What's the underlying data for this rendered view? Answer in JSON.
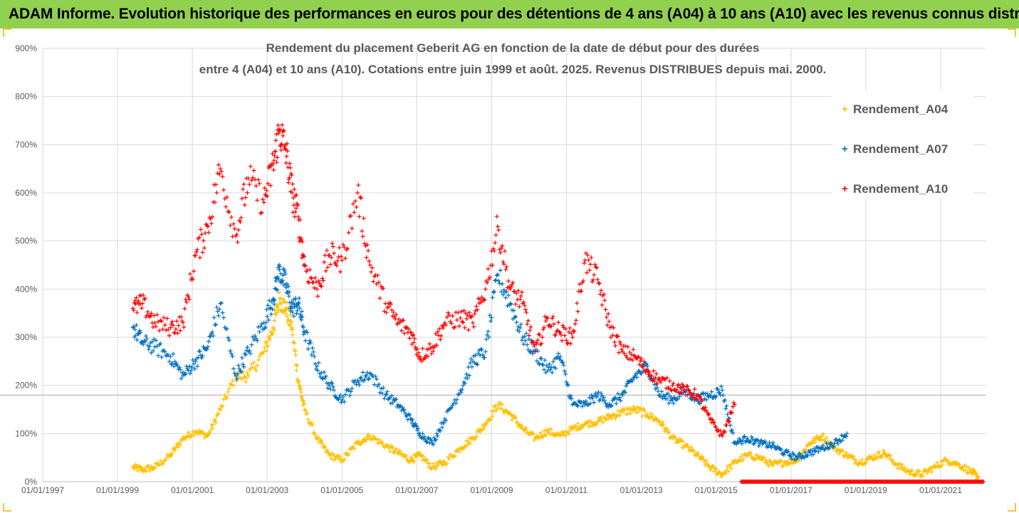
{
  "banner": {
    "text": "ADAM Informe. Evolution historique des performances en euros pour des détentions de 4 ans (A04) à 10 ans (A10) avec les revenus connus distribués"
  },
  "colors": {
    "banner_bg": "#92d050",
    "A04": "#ffc000",
    "A07": "#0070c0",
    "A10": "#ff0000",
    "grid": "#d9d9d9",
    "text": "#595959"
  },
  "chart_data": {
    "type": "scatter",
    "title": "Rendement du placement Geberit AG en fonction de la date de début pour des durées",
    "subtitle": "entre 4 (A04) et 10 ans (A10). Cotations entre juin 1999 et août. 2025. Revenus DISTRIBUES depuis mai. 2000.",
    "xlabel": "",
    "ylabel": "",
    "ylim": [
      0,
      9
    ],
    "x_range": [
      "1997-01-01",
      "2022-03-15"
    ],
    "yticks": [
      "0%",
      "100%",
      "200%",
      "300%",
      "400%",
      "500%",
      "600%",
      "700%",
      "800%",
      "900%"
    ],
    "xticks": [
      "01/01/1997",
      "01/01/1999",
      "01/01/2001",
      "01/01/2003",
      "01/01/2005",
      "01/01/2007",
      "01/01/2009",
      "01/01/2011",
      "01/01/2013",
      "01/01/2015",
      "01/01/2017",
      "01/01/2019",
      "01/01/2021"
    ],
    "grid": "horizontal and vertical",
    "legend_position": "right",
    "reference_line_y": 1.8,
    "marker": "+",
    "series": [
      {
        "name": "Rendement_A04",
        "color": "#ffc000",
        "x": [
          "1999-06",
          "1999-09",
          "2000-01",
          "2000-06",
          "2000-10",
          "2001-02",
          "2001-06",
          "2001-10",
          "2002-03",
          "2002-07",
          "2002-12",
          "2003-03",
          "2003-05",
          "2003-07",
          "2003-09",
          "2003-11",
          "2004-01",
          "2004-05",
          "2004-09",
          "2005-01",
          "2005-06",
          "2005-10",
          "2006-03",
          "2006-07",
          "2006-11",
          "2007-02",
          "2007-06",
          "2007-10",
          "2008-03",
          "2008-07",
          "2008-11",
          "2009-03",
          "2009-07",
          "2009-11",
          "2010-03",
          "2010-07",
          "2010-11",
          "2011-03",
          "2011-07",
          "2011-11",
          "2012-03",
          "2012-07",
          "2012-11",
          "2013-03",
          "2013-07",
          "2013-11",
          "2014-03",
          "2014-07",
          "2014-11",
          "2015-03",
          "2015-07",
          "2015-11",
          "2016-03",
          "2016-07",
          "2016-11",
          "2017-03",
          "2017-07",
          "2017-11",
          "2018-03",
          "2018-07",
          "2018-11",
          "2019-03",
          "2019-07",
          "2019-11",
          "2020-03",
          "2020-07",
          "2020-11",
          "2021-03",
          "2021-07",
          "2021-11",
          "2022-01"
        ],
        "y": [
          0.3,
          0.25,
          0.3,
          0.55,
          0.9,
          1.05,
          0.95,
          1.5,
          2.2,
          2.2,
          2.7,
          3.2,
          3.8,
          3.6,
          3.2,
          2.1,
          1.5,
          0.9,
          0.55,
          0.45,
          0.8,
          0.95,
          0.75,
          0.6,
          0.45,
          0.55,
          0.3,
          0.4,
          0.7,
          0.9,
          1.2,
          1.6,
          1.4,
          1.1,
          0.9,
          1.05,
          0.95,
          1.1,
          1.2,
          1.25,
          1.35,
          1.45,
          1.5,
          1.4,
          1.25,
          0.9,
          0.75,
          0.55,
          0.3,
          0.15,
          0.4,
          0.55,
          0.5,
          0.35,
          0.4,
          0.45,
          0.8,
          0.95,
          0.7,
          0.55,
          0.4,
          0.5,
          0.6,
          0.35,
          0.2,
          0.15,
          0.3,
          0.45,
          0.35,
          0.2,
          0.1
        ]
      },
      {
        "name": "Rendement_A07",
        "color": "#0070c0",
        "x": [
          "1999-06",
          "1999-09",
          "2000-01",
          "2000-06",
          "2000-10",
          "2001-02",
          "2001-06",
          "2001-10",
          "2002-03",
          "2002-07",
          "2002-12",
          "2003-03",
          "2003-05",
          "2003-07",
          "2003-09",
          "2003-11",
          "2004-01",
          "2004-05",
          "2004-09",
          "2005-01",
          "2005-06",
          "2005-10",
          "2006-03",
          "2006-07",
          "2006-11",
          "2007-02",
          "2007-06",
          "2007-10",
          "2008-03",
          "2008-07",
          "2008-11",
          "2009-03",
          "2009-07",
          "2009-11",
          "2010-03",
          "2010-07",
          "2010-11",
          "2011-03",
          "2011-07",
          "2011-11",
          "2012-03",
          "2012-07",
          "2012-11",
          "2013-03",
          "2013-07",
          "2013-11",
          "2014-03",
          "2014-07",
          "2014-11",
          "2015-03",
          "2015-07",
          "2015-11",
          "2016-03",
          "2016-07",
          "2016-11",
          "2017-03",
          "2017-07",
          "2017-11",
          "2018-03",
          "2018-07"
        ],
        "y": [
          3.2,
          2.9,
          2.8,
          2.6,
          2.2,
          2.5,
          2.8,
          3.7,
          2.2,
          2.7,
          3.3,
          3.8,
          4.4,
          4.1,
          3.6,
          3.7,
          3.1,
          2.4,
          2.0,
          1.7,
          2.1,
          2.25,
          1.8,
          1.6,
          1.3,
          1.0,
          0.8,
          1.3,
          1.9,
          2.5,
          2.7,
          4.3,
          3.7,
          3.0,
          2.7,
          2.3,
          2.6,
          1.6,
          1.6,
          1.8,
          1.6,
          1.8,
          2.2,
          2.4,
          1.8,
          1.7,
          1.9,
          1.7,
          1.8,
          1.9,
          0.8,
          0.9,
          0.8,
          0.75,
          0.6,
          0.5,
          0.6,
          0.7,
          0.8,
          1.0
        ]
      },
      {
        "name": "Rendement_A10",
        "color": "#ff0000",
        "x": [
          "1999-06",
          "1999-09",
          "2000-01",
          "2000-06",
          "2000-10",
          "2001-02",
          "2001-06",
          "2001-10",
          "2002-03",
          "2002-07",
          "2002-12",
          "2003-03",
          "2003-05",
          "2003-07",
          "2003-09",
          "2003-11",
          "2004-01",
          "2004-05",
          "2004-09",
          "2005-01",
          "2005-06",
          "2005-10",
          "2006-03",
          "2006-07",
          "2006-11",
          "2007-02",
          "2007-06",
          "2007-10",
          "2008-03",
          "2008-07",
          "2008-11",
          "2009-03",
          "2009-07",
          "2009-11",
          "2010-03",
          "2010-07",
          "2010-11",
          "2011-03",
          "2011-07",
          "2011-11",
          "2012-03",
          "2012-07",
          "2012-11",
          "2013-03",
          "2013-07",
          "2013-11",
          "2014-03",
          "2014-07",
          "2014-11",
          "2015-03",
          "2015-07"
        ],
        "y": [
          3.6,
          3.7,
          3.3,
          3.2,
          3.3,
          4.7,
          5.3,
          6.5,
          5.1,
          6.3,
          5.8,
          6.6,
          7.3,
          6.9,
          6.0,
          5.5,
          4.5,
          4.0,
          4.7,
          4.6,
          6.0,
          4.5,
          3.7,
          3.3,
          3.1,
          2.6,
          2.8,
          3.3,
          3.4,
          3.3,
          4.0,
          5.3,
          4.0,
          3.7,
          2.7,
          3.4,
          3.1,
          3.0,
          4.6,
          4.2,
          3.2,
          2.7,
          2.6,
          2.3,
          2.1,
          2.0,
          1.9,
          1.8,
          1.3,
          0.95,
          1.6
        ]
      }
    ]
  }
}
